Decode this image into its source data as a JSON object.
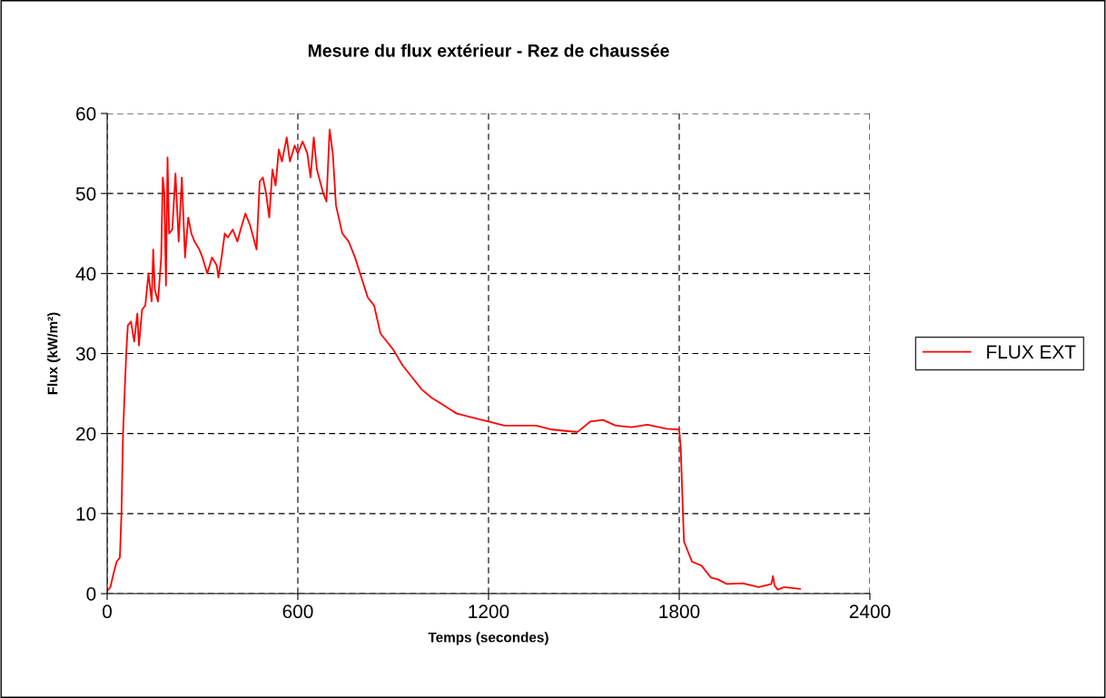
{
  "chart_data": {
    "type": "line",
    "title": "Mesure du flux extérieur - Rez de chaussée",
    "xlabel": "Temps (secondes)",
    "ylabel": "Flux (kW/m²)",
    "xlim": [
      0,
      2400
    ],
    "xticks": [
      0,
      600,
      1200,
      1800,
      2400
    ],
    "ylim": [
      0,
      60
    ],
    "yticks": [
      0,
      10,
      20,
      30,
      40,
      50,
      60
    ],
    "grid": true,
    "legend": "right",
    "marker": "none",
    "line_style": "solid",
    "x": [
      0,
      10,
      20,
      30,
      40,
      45,
      50,
      55,
      60,
      65,
      75,
      85,
      95,
      100,
      110,
      120,
      130,
      140,
      145,
      150,
      160,
      170,
      175,
      180,
      185,
      190,
      195,
      205,
      215,
      225,
      235,
      245,
      255,
      265,
      275,
      290,
      300,
      315,
      330,
      345,
      350,
      360,
      370,
      380,
      395,
      410,
      420,
      435,
      450,
      460,
      470,
      480,
      490,
      500,
      510,
      520,
      530,
      540,
      550,
      565,
      575,
      590,
      600,
      615,
      630,
      640,
      650,
      660,
      670,
      680,
      690,
      700,
      710,
      720,
      740,
      760,
      780,
      800,
      820,
      840,
      860,
      880,
      900,
      930,
      960,
      990,
      1020,
      1060,
      1100,
      1150,
      1200,
      1250,
      1300,
      1350,
      1400,
      1450,
      1480,
      1520,
      1560,
      1600,
      1650,
      1700,
      1760,
      1800,
      1805,
      1810,
      1815,
      1825,
      1840,
      1870,
      1900,
      1920,
      1950,
      2000,
      2050,
      2090,
      2095,
      2100,
      2110,
      2130,
      2180
    ],
    "series": [
      {
        "name": "FLUX EXT",
        "color": "#ff0000",
        "values": [
          0.3,
          0.8,
          2.5,
          4,
          4.5,
          10,
          20,
          25,
          30,
          33.5,
          34,
          31.5,
          35,
          31,
          35.5,
          36,
          40,
          36.5,
          43,
          38,
          36.5,
          42,
          52,
          50,
          38.5,
          54.5,
          45,
          45.5,
          52.5,
          44,
          52,
          42,
          47,
          45,
          44,
          43,
          42,
          40,
          42,
          41,
          39.5,
          42,
          45,
          44.5,
          45.5,
          44,
          45.5,
          47.5,
          46,
          44.5,
          43,
          51.5,
          52,
          50,
          47,
          53,
          51,
          55.5,
          54,
          57,
          54,
          56,
          55,
          56.5,
          55,
          52,
          57,
          53,
          51.5,
          50,
          49,
          58,
          55,
          48.5,
          45,
          44,
          42,
          39.5,
          37,
          36,
          32.5,
          31.5,
          30.5,
          28.5,
          27,
          25.5,
          24.5,
          23.5,
          22.5,
          22,
          21.5,
          21,
          21,
          21,
          20.5,
          20.3,
          20.2,
          21.5,
          21.7,
          21,
          20.8,
          21.1,
          20.6,
          20.5,
          18,
          12,
          6.5,
          5.5,
          4,
          3.5,
          2,
          1.8,
          1.2,
          1.3,
          0.8,
          1.2,
          2.2,
          1.0,
          0.5,
          0.8,
          0.6
        ]
      }
    ]
  }
}
